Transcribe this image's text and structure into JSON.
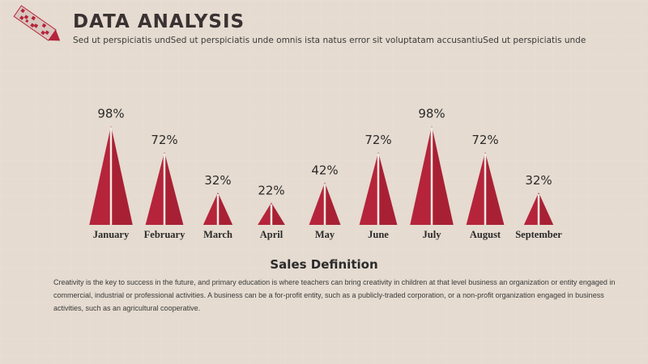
{
  "header": {
    "title": "DATA ANALYSIS",
    "subtitle": "Sed ut perspiciatis undSed ut perspiciatis unde omnis ista natus error sit voluptatam accusantiuSed ut perspiciatis unde"
  },
  "colors": {
    "accent": "#b5243a",
    "accent_dark": "#8e1a2c",
    "divider": "#f3e9e0"
  },
  "chart_data": {
    "type": "bar",
    "categories": [
      "January",
      "February",
      "March",
      "April",
      "May",
      "June",
      "July",
      "August",
      "September"
    ],
    "values": [
      98,
      72,
      32,
      22,
      42,
      72,
      98,
      72,
      32
    ],
    "value_labels": [
      "98%",
      "72%",
      "32%",
      "22%",
      "42%",
      "72%",
      "98%",
      "72%",
      "32%"
    ],
    "unit": "%",
    "title": "",
    "xlabel": "",
    "ylabel": "",
    "ylim": [
      0,
      100
    ],
    "grid": false,
    "legend": "none",
    "shape": "triangle"
  },
  "definition": {
    "title": "Sales Definition",
    "body": "Creativity is the key to success in the future, and primary education is where teachers can bring creativity in children at that level business an organization or entity engaged in commercial, industrial or professional activities. A business can be a for-profit entity, such as a publicly-traded corporation, or a non-profit organization engaged in business activities, such as an agricultural cooperative."
  }
}
